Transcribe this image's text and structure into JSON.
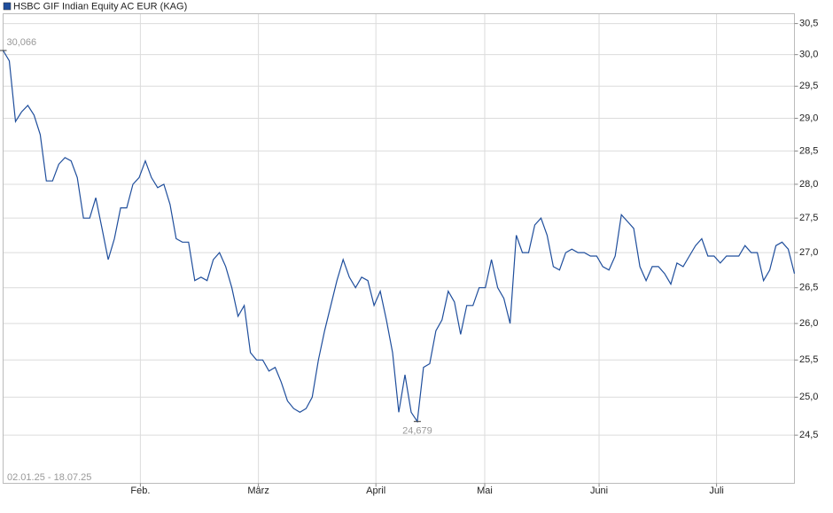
{
  "chart_data": {
    "type": "line",
    "series": [
      {
        "name": "HSBC GIF Indian Equity AC EUR (KAG)",
        "color": "#1f4e9c",
        "values": [
          30.066,
          29.9,
          28.95,
          29.1,
          29.2,
          29.05,
          28.75,
          28.05,
          28.05,
          28.3,
          28.4,
          28.35,
          28.1,
          27.5,
          27.5,
          27.8,
          27.35,
          26.9,
          27.2,
          27.65,
          27.65,
          28.0,
          28.1,
          28.35,
          28.1,
          27.95,
          28.0,
          27.7,
          27.2,
          27.15,
          27.15,
          26.6,
          26.65,
          26.6,
          26.9,
          27.0,
          26.8,
          26.5,
          26.1,
          26.25,
          25.6,
          25.5,
          25.5,
          25.35,
          25.4,
          25.2,
          24.95,
          24.85,
          24.8,
          24.85,
          25.0,
          25.5,
          25.9,
          26.25,
          26.6,
          26.9,
          26.65,
          26.5,
          26.65,
          26.6,
          26.25,
          26.45,
          26.05,
          25.6,
          24.8,
          25.3,
          24.8,
          24.679,
          25.4,
          25.45,
          25.9,
          26.05,
          26.45,
          26.3,
          25.85,
          26.25,
          26.25,
          26.5,
          26.5,
          26.9,
          26.5,
          26.35,
          26.0,
          27.25,
          27.0,
          27.0,
          27.4,
          27.5,
          27.25,
          26.8,
          26.75,
          27.0,
          27.05,
          27.0,
          27.0,
          26.95,
          26.95,
          26.8,
          26.75,
          26.95,
          27.55,
          27.45,
          27.35,
          26.8,
          26.6,
          26.8,
          26.8,
          26.7,
          26.55,
          26.85,
          26.8,
          26.95,
          27.1,
          27.2,
          26.95,
          26.95,
          26.85,
          26.95,
          26.95,
          26.95,
          27.1,
          27.0,
          27.0,
          26.6,
          26.75,
          27.1,
          27.15,
          27.05,
          26.7
        ]
      }
    ],
    "annotations": [
      {
        "value": 30.066,
        "label": "30,066"
      },
      {
        "value": 24.679,
        "label": "24,679"
      }
    ],
    "date_range": "02.01.25 - 18.07.25",
    "xlim": [
      0,
      128
    ],
    "xticks": [
      {
        "value": 22.2,
        "label": "Feb."
      },
      {
        "value": 41.3,
        "label": "März"
      },
      {
        "value": 60.3,
        "label": "April"
      },
      {
        "value": 77.9,
        "label": "Mai"
      },
      {
        "value": 96.4,
        "label": "Juni"
      },
      {
        "value": 115.4,
        "label": "Juli"
      }
    ],
    "ylim": [
      23.88,
      30.66
    ],
    "log_scale": true,
    "grid": true,
    "yticks": [
      {
        "value": 24.5,
        "label": "24,5"
      },
      {
        "value": 25,
        "label": "25,0"
      },
      {
        "value": 25.5,
        "label": "25,5"
      },
      {
        "value": 26,
        "label": "26,0"
      },
      {
        "value": 26.5,
        "label": "26,5"
      },
      {
        "value": 27,
        "label": "27,0"
      },
      {
        "value": 27.5,
        "label": "27,5"
      },
      {
        "value": 28,
        "label": "28,0"
      },
      {
        "value": 28.5,
        "label": "28,5"
      },
      {
        "value": 29,
        "label": "29,0"
      },
      {
        "value": 29.5,
        "label": "29,5"
      },
      {
        "value": 30,
        "label": "30,0"
      },
      {
        "value": 30.5,
        "label": "30,5"
      }
    ]
  }
}
